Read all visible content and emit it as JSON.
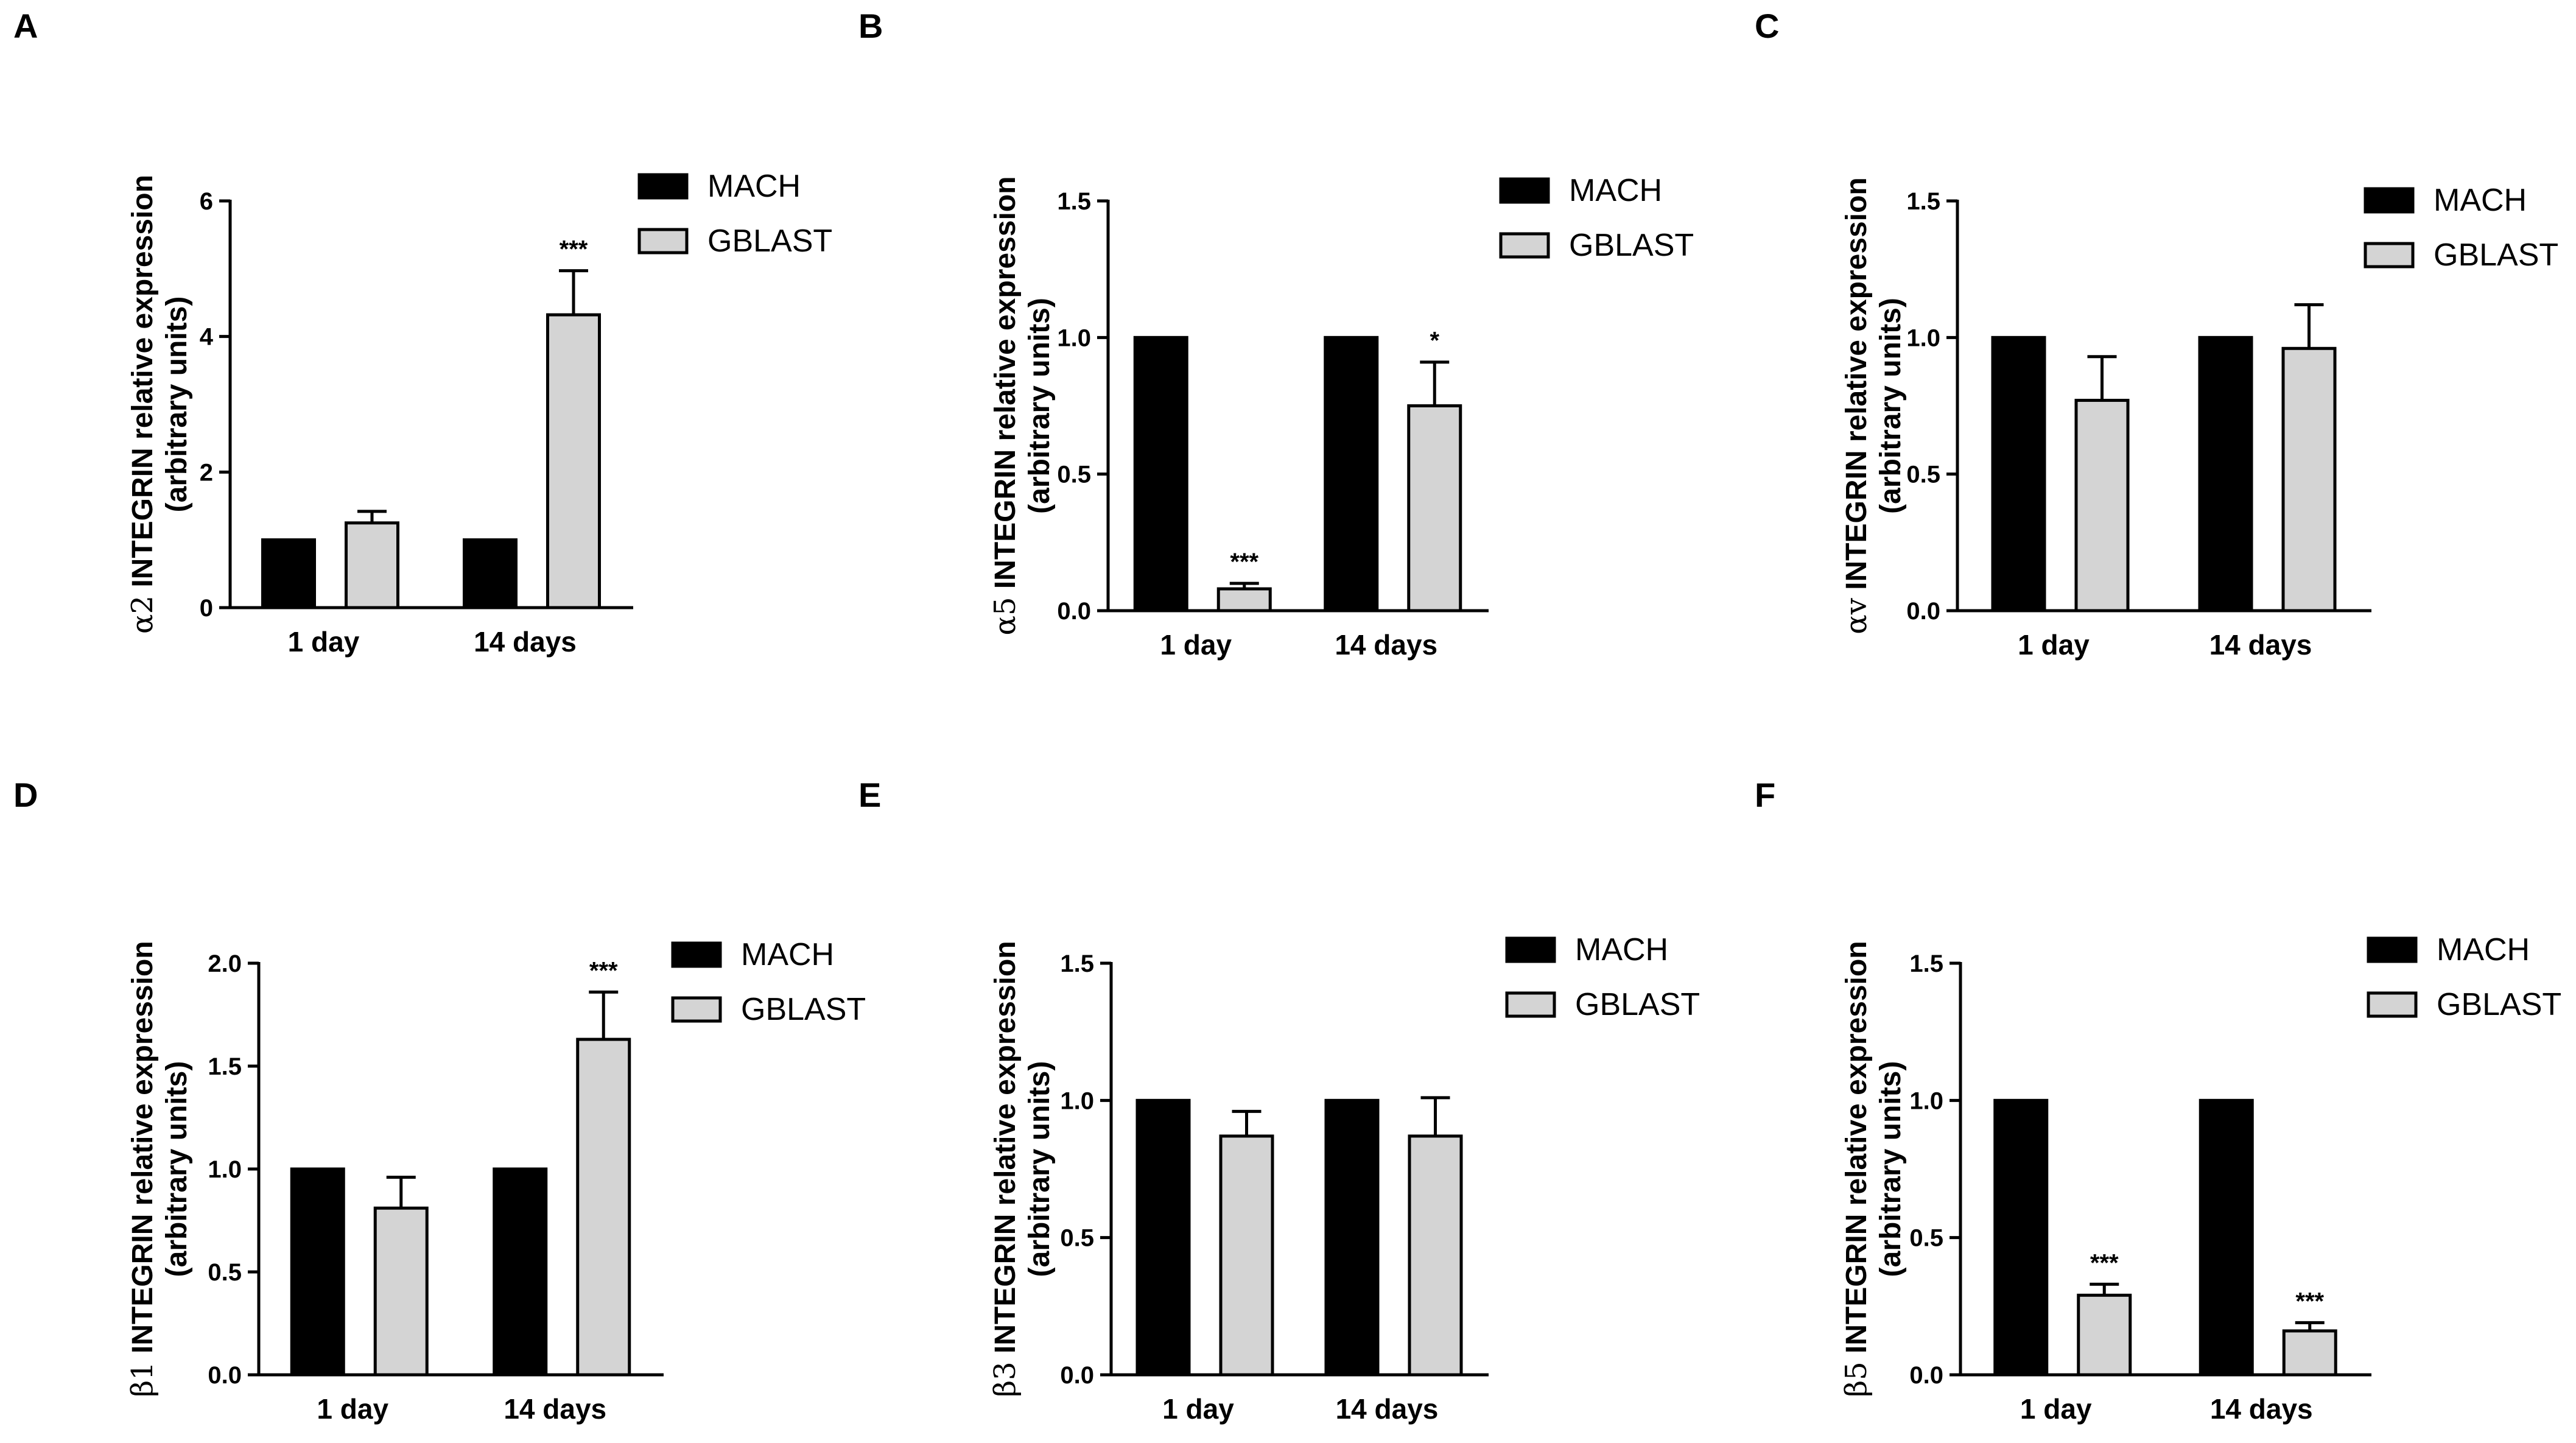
{
  "colors": {
    "mach": "#000000",
    "gblast": "#d4d4d4",
    "stroke": "#000000"
  },
  "chart_data": [
    {
      "panel": "A",
      "type": "bar",
      "categories": [
        "1 day",
        "14 days"
      ],
      "ylabel_symbol": "α2",
      "ylabel_line1": " INTEGRIN relative expression",
      "ylabel_line2": "(arbitrary units)",
      "ylim": [
        0,
        6
      ],
      "yticks": [
        "0",
        "2",
        "4",
        "6"
      ],
      "ytick_values": [
        0,
        2,
        4,
        6
      ],
      "series": [
        {
          "name": "MACH",
          "values": [
            1.0,
            1.0
          ],
          "errors": [
            0,
            0
          ],
          "sig": [
            "",
            ""
          ]
        },
        {
          "name": "GBLAST",
          "values": [
            1.25,
            4.32
          ],
          "errors": [
            0.17,
            0.65
          ],
          "sig": [
            "",
            "***"
          ]
        }
      ]
    },
    {
      "panel": "B",
      "type": "bar",
      "categories": [
        "1 day",
        "14 days"
      ],
      "ylabel_symbol": "α5",
      "ylabel_line1": " INTEGRIN relative expression",
      "ylabel_line2": "(arbitrary units)",
      "ylim": [
        0,
        1.5
      ],
      "yticks": [
        "0.0",
        "0.5",
        "1.0",
        "1.5"
      ],
      "ytick_values": [
        0,
        0.5,
        1.0,
        1.5
      ],
      "series": [
        {
          "name": "MACH",
          "values": [
            1.0,
            1.0
          ],
          "errors": [
            0,
            0
          ],
          "sig": [
            "",
            ""
          ]
        },
        {
          "name": "GBLAST",
          "values": [
            0.08,
            0.75
          ],
          "errors": [
            0.02,
            0.16
          ],
          "sig": [
            "***",
            "*"
          ]
        }
      ]
    },
    {
      "panel": "C",
      "type": "bar",
      "categories": [
        "1 day",
        "14 days"
      ],
      "ylabel_symbol": "αv",
      "ylabel_line1": " INTEGRIN relative expression",
      "ylabel_line2": "(arbitrary units)",
      "ylim": [
        0,
        1.5
      ],
      "yticks": [
        "0.0",
        "0.5",
        "1.0",
        "1.5"
      ],
      "ytick_values": [
        0,
        0.5,
        1.0,
        1.5
      ],
      "series": [
        {
          "name": "MACH",
          "values": [
            1.0,
            1.0
          ],
          "errors": [
            0,
            0
          ],
          "sig": [
            "",
            ""
          ]
        },
        {
          "name": "GBLAST",
          "values": [
            0.77,
            0.96
          ],
          "errors": [
            0.16,
            0.16
          ],
          "sig": [
            "",
            ""
          ]
        }
      ]
    },
    {
      "panel": "D",
      "type": "bar",
      "categories": [
        "1 day",
        "14 days"
      ],
      "ylabel_symbol": "β1",
      "ylabel_line1": " INTEGRIN relative expression",
      "ylabel_line2": "(arbitrary units)",
      "ylim": [
        0,
        2.0
      ],
      "yticks": [
        "0.0",
        "0.5",
        "1.0",
        "1.5",
        "2.0"
      ],
      "ytick_values": [
        0,
        0.5,
        1.0,
        1.5,
        2.0
      ],
      "series": [
        {
          "name": "MACH",
          "values": [
            1.0,
            1.0
          ],
          "errors": [
            0,
            0
          ],
          "sig": [
            "",
            ""
          ]
        },
        {
          "name": "GBLAST",
          "values": [
            0.81,
            1.63
          ],
          "errors": [
            0.15,
            0.23
          ],
          "sig": [
            "",
            "***"
          ]
        }
      ]
    },
    {
      "panel": "E",
      "type": "bar",
      "categories": [
        "1 day",
        "14 days"
      ],
      "ylabel_symbol": "β3",
      "ylabel_line1": " INTEGRIN relative expression",
      "ylabel_line2": "(arbitrary units)",
      "ylim": [
        0,
        1.5
      ],
      "yticks": [
        "0.0",
        "0.5",
        "1.0",
        "1.5"
      ],
      "ytick_values": [
        0,
        0.5,
        1.0,
        1.5
      ],
      "series": [
        {
          "name": "MACH",
          "values": [
            1.0,
            1.0
          ],
          "errors": [
            0,
            0
          ],
          "sig": [
            "",
            ""
          ]
        },
        {
          "name": "GBLAST",
          "values": [
            0.87,
            0.87
          ],
          "errors": [
            0.09,
            0.14
          ],
          "sig": [
            "",
            ""
          ]
        }
      ]
    },
    {
      "panel": "F",
      "type": "bar",
      "categories": [
        "1 day",
        "14 days"
      ],
      "ylabel_symbol": "β5",
      "ylabel_line1": " INTEGRIN relative expression",
      "ylabel_line2": "(arbitrary units)",
      "ylim": [
        0,
        1.5
      ],
      "yticks": [
        "0.0",
        "0.5",
        "1.0",
        "1.5"
      ],
      "ytick_values": [
        0,
        0.5,
        1.0,
        1.5
      ],
      "series": [
        {
          "name": "MACH",
          "values": [
            1.0,
            1.0
          ],
          "errors": [
            0,
            0
          ],
          "sig": [
            "",
            ""
          ]
        },
        {
          "name": "GBLAST",
          "values": [
            0.29,
            0.16
          ],
          "errors": [
            0.04,
            0.03
          ],
          "sig": [
            "***",
            "***"
          ]
        }
      ]
    }
  ]
}
